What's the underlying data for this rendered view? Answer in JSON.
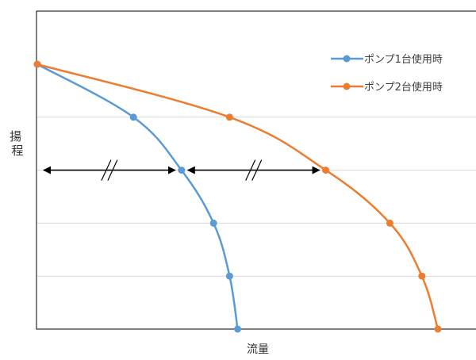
{
  "chart_data": {
    "type": "line",
    "xlabel": "流量",
    "ylabel": "揚程",
    "xlim": [
      0,
      10
    ],
    "ylim": [
      0,
      5
    ],
    "grid": "horizontal",
    "legend_position": "top-right",
    "series": [
      {
        "name": "ポンプ1台使用時",
        "color": "#5b9bd5",
        "points": [
          [
            0,
            5.0
          ],
          [
            2.4,
            4.0
          ],
          [
            3.6,
            3.0
          ],
          [
            4.4,
            2.0
          ],
          [
            4.8,
            1.0
          ],
          [
            5.0,
            0.0
          ]
        ]
      },
      {
        "name": "ポンプ2台使用時",
        "color": "#ed7d31",
        "points": [
          [
            0,
            5.0
          ],
          [
            4.8,
            4.0
          ],
          [
            7.2,
            3.0
          ],
          [
            8.8,
            2.0
          ],
          [
            9.6,
            1.0
          ],
          [
            10.0,
            0.0
          ]
        ]
      }
    ],
    "annotations": [
      {
        "type": "double-arrow",
        "from": [
          0,
          3.0
        ],
        "to": [
          3.6,
          3.0
        ],
        "mark": "//"
      },
      {
        "type": "double-arrow",
        "from": [
          3.6,
          3.0
        ],
        "to": [
          7.2,
          3.0
        ],
        "mark": "//"
      }
    ]
  }
}
